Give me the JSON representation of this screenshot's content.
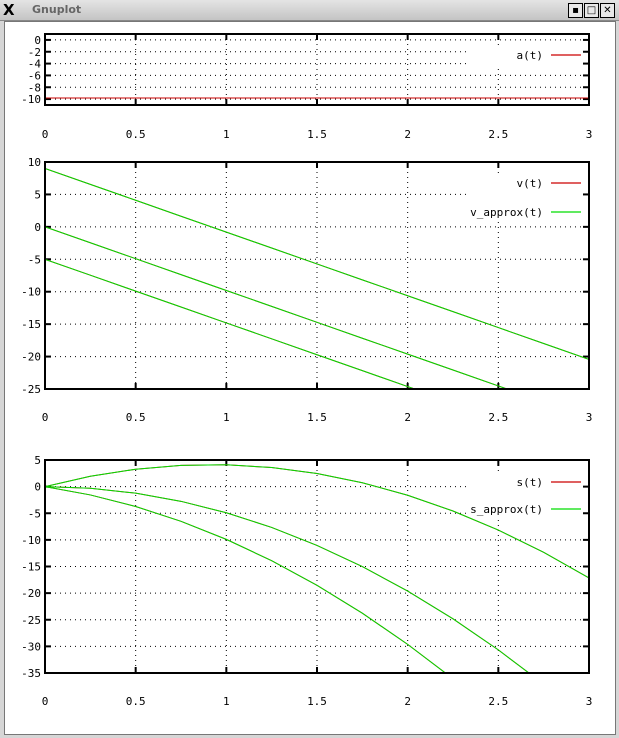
{
  "window": {
    "title": "Gnuplot",
    "buttons": [
      "minimize",
      "maximize",
      "close"
    ]
  },
  "colors": {
    "red": "#cc0000",
    "green": "#00dd00",
    "grid": "#000000"
  },
  "chart_data": [
    {
      "type": "line",
      "xlim": [
        0,
        3
      ],
      "ylim": [
        -11,
        1
      ],
      "xticks": [
        "0",
        "0.5",
        "1",
        "1.5",
        "2",
        "2.5",
        "3"
      ],
      "yticks": [
        "0",
        "-2",
        "-4",
        "-6",
        "-8",
        "-10"
      ],
      "grid": true,
      "legend": "top-right",
      "x": [
        0,
        3
      ],
      "series": [
        {
          "name": "a(t)",
          "color": "red",
          "curves": [
            [
              -9.81,
              -9.81
            ]
          ]
        }
      ]
    },
    {
      "type": "line",
      "xlim": [
        0,
        3
      ],
      "ylim": [
        -25,
        10
      ],
      "xticks": [
        "0",
        "0.5",
        "1",
        "1.5",
        "2",
        "2.5",
        "3"
      ],
      "yticks": [
        "10",
        "5",
        "0",
        "-5",
        "-10",
        "-15",
        "-20",
        "-25"
      ],
      "grid": true,
      "legend": "top-right",
      "x": [
        0,
        0.25,
        0.5,
        0.75,
        1,
        1.25,
        1.5,
        1.75,
        2,
        2.25,
        2.5,
        2.75,
        3
      ],
      "series": [
        {
          "name": "v(t)",
          "color": "red",
          "curves": [
            [
              9,
              6.55,
              4.1,
              1.64,
              -0.81,
              -3.26,
              -5.72,
              -8.17,
              -10.62,
              -13.07,
              -15.53,
              -17.98,
              -20.43
            ],
            [
              0,
              -2.45,
              -4.91,
              -7.36,
              -9.81,
              -12.26,
              -14.72,
              -17.17,
              -19.62,
              -22.07,
              -24.53,
              -26.98
            ],
            [
              -5,
              -7.45,
              -9.91,
              -12.36,
              -14.81,
              -17.26,
              -19.72,
              -22.17,
              -24.62,
              -27.07
            ]
          ]
        },
        {
          "name": "v_approx(t)",
          "color": "green",
          "curves": [
            [
              9,
              6.55,
              4.1,
              1.64,
              -0.81,
              -3.26,
              -5.72,
              -8.17,
              -10.62,
              -13.07,
              -15.53,
              -17.98,
              -20.43
            ],
            [
              0,
              -2.45,
              -4.91,
              -7.36,
              -9.81,
              -12.26,
              -14.72,
              -17.17,
              -19.62,
              -22.07,
              -24.53,
              -26.98
            ],
            [
              -5,
              -7.45,
              -9.91,
              -12.36,
              -14.81,
              -17.26,
              -19.72,
              -22.17,
              -24.62,
              -27.07
            ]
          ]
        }
      ]
    },
    {
      "type": "line",
      "xlim": [
        0,
        3
      ],
      "ylim": [
        -35,
        5
      ],
      "xticks": [
        "0",
        "0.5",
        "1",
        "1.5",
        "2",
        "2.5",
        "3"
      ],
      "yticks": [
        "5",
        "0",
        "-5",
        "-10",
        "-15",
        "-20",
        "-25",
        "-30",
        "-35"
      ],
      "grid": true,
      "legend": "top-right",
      "x": [
        0,
        0.25,
        0.5,
        0.75,
        1,
        1.25,
        1.5,
        1.75,
        2,
        2.25,
        2.5,
        2.75,
        3
      ],
      "series": [
        {
          "name": "s(t)",
          "color": "red",
          "curves": [
            [
              0,
              1.94,
              3.27,
              3.99,
              4.1,
              3.59,
              2.46,
              0.73,
              -1.62,
              -4.58,
              -8.16,
              -12.34,
              -17.15
            ],
            [
              0,
              -0.31,
              -1.23,
              -2.76,
              -4.91,
              -7.66,
              -11.04,
              -15.02,
              -19.62,
              -24.83,
              -30.66,
              -37.09
            ],
            [
              0,
              -1.56,
              -3.73,
              -6.51,
              -9.91,
              -13.91,
              -18.54,
              -23.77,
              -29.62,
              -36.08
            ]
          ]
        },
        {
          "name": "s_approx(t)",
          "color": "green",
          "curves": [
            [
              0,
              1.94,
              3.27,
              3.99,
              4.1,
              3.59,
              2.46,
              0.73,
              -1.62,
              -4.58,
              -8.16,
              -12.34,
              -17.15
            ],
            [
              0,
              -0.31,
              -1.23,
              -2.76,
              -4.91,
              -7.66,
              -11.04,
              -15.02,
              -19.62,
              -24.83,
              -30.66,
              -37.09
            ],
            [
              0,
              -1.56,
              -3.73,
              -6.51,
              -9.91,
              -13.91,
              -18.54,
              -23.77,
              -29.62,
              -36.08
            ]
          ]
        }
      ]
    }
  ]
}
